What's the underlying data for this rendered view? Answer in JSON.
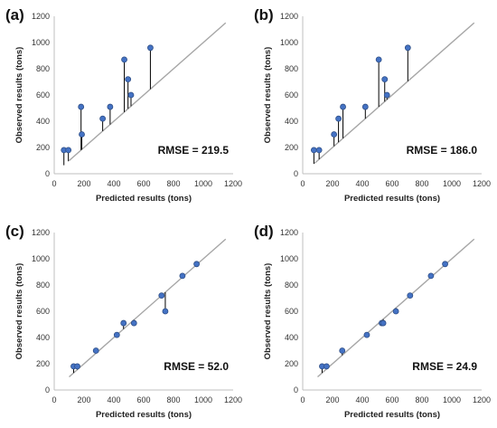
{
  "chart_data": [
    {
      "type": "scatter",
      "panel_label": "(a)",
      "xlabel": "Predicted results (tons)",
      "ylabel": "Observed results (tons)",
      "xlim": [
        0,
        1200
      ],
      "ylim": [
        0,
        1200
      ],
      "x_ticks": [
        "0",
        "200",
        "400",
        "600",
        "800",
        "1000",
        "1200"
      ],
      "y_ticks": [
        "0",
        "200",
        "400",
        "600",
        "800",
        "1000",
        "1200"
      ],
      "annotation": "RMSE = 219.5",
      "reference_line": {
        "from": [
          100,
          100
        ],
        "to": [
          1150,
          1150
        ]
      },
      "grid": false,
      "points": [
        {
          "x": 65,
          "y": 180
        },
        {
          "x": 95,
          "y": 180
        },
        {
          "x": 180,
          "y": 510
        },
        {
          "x": 185,
          "y": 300
        },
        {
          "x": 325,
          "y": 420
        },
        {
          "x": 375,
          "y": 510
        },
        {
          "x": 470,
          "y": 870
        },
        {
          "x": 495,
          "y": 720
        },
        {
          "x": 515,
          "y": 600
        },
        {
          "x": 645,
          "y": 960
        }
      ]
    },
    {
      "type": "scatter",
      "panel_label": "(b)",
      "xlabel": "Predicted results (tons)",
      "ylabel": "Observed results (tons)",
      "xlim": [
        0,
        1200
      ],
      "ylim": [
        0,
        1200
      ],
      "x_ticks": [
        "0",
        "200",
        "400",
        "600",
        "800",
        "1000",
        "1200"
      ],
      "y_ticks": [
        "0",
        "200",
        "400",
        "600",
        "800",
        "1000",
        "1200"
      ],
      "annotation": "RMSE = 186.0",
      "reference_line": {
        "from": [
          80,
          80
        ],
        "to": [
          1150,
          1150
        ]
      },
      "grid": false,
      "points": [
        {
          "x": 75,
          "y": 180
        },
        {
          "x": 110,
          "y": 180
        },
        {
          "x": 210,
          "y": 300
        },
        {
          "x": 240,
          "y": 420
        },
        {
          "x": 270,
          "y": 510
        },
        {
          "x": 420,
          "y": 510
        },
        {
          "x": 510,
          "y": 870
        },
        {
          "x": 550,
          "y": 720
        },
        {
          "x": 565,
          "y": 600
        },
        {
          "x": 705,
          "y": 960
        }
      ]
    },
    {
      "type": "scatter",
      "panel_label": "(c)",
      "xlabel": "Predicted results (tons)",
      "ylabel": "Observed results (tons)",
      "xlim": [
        0,
        1200
      ],
      "ylim": [
        0,
        1200
      ],
      "x_ticks": [
        "0",
        "200",
        "400",
        "600",
        "800",
        "1000",
        "1200"
      ],
      "y_ticks": [
        "0",
        "200",
        "400",
        "600",
        "800",
        "1000",
        "1200"
      ],
      "annotation": "RMSE = 52.0",
      "reference_line": {
        "from": [
          100,
          100
        ],
        "to": [
          1150,
          1150
        ]
      },
      "grid": false,
      "points": [
        {
          "x": 130,
          "y": 180
        },
        {
          "x": 155,
          "y": 180
        },
        {
          "x": 280,
          "y": 300
        },
        {
          "x": 420,
          "y": 420
        },
        {
          "x": 465,
          "y": 510
        },
        {
          "x": 535,
          "y": 510
        },
        {
          "x": 720,
          "y": 720
        },
        {
          "x": 745,
          "y": 600
        },
        {
          "x": 860,
          "y": 870
        },
        {
          "x": 955,
          "y": 960
        }
      ]
    },
    {
      "type": "scatter",
      "panel_label": "(d)",
      "xlabel": "Predicted results (tons)",
      "ylabel": "Observed results (tons)",
      "xlim": [
        0,
        1200
      ],
      "ylim": [
        0,
        1200
      ],
      "x_ticks": [
        "0",
        "200",
        "400",
        "600",
        "800",
        "1000",
        "1200"
      ],
      "y_ticks": [
        "0",
        "200",
        "400",
        "600",
        "800",
        "1000",
        "1200"
      ],
      "annotation": "RMSE = 24.9",
      "reference_line": {
        "from": [
          100,
          100
        ],
        "to": [
          1150,
          1150
        ]
      },
      "grid": false,
      "points": [
        {
          "x": 130,
          "y": 180
        },
        {
          "x": 160,
          "y": 180
        },
        {
          "x": 265,
          "y": 300
        },
        {
          "x": 430,
          "y": 420
        },
        {
          "x": 530,
          "y": 510
        },
        {
          "x": 540,
          "y": 510
        },
        {
          "x": 625,
          "y": 600
        },
        {
          "x": 720,
          "y": 720
        },
        {
          "x": 860,
          "y": 870
        },
        {
          "x": 955,
          "y": 960
        }
      ]
    }
  ],
  "colors": {
    "marker_fill": "#4472c4",
    "marker_stroke": "#2f4f86",
    "reference_line": "#a6a6a6",
    "residual_line": "#000000",
    "axis": "#bfbfbf"
  }
}
